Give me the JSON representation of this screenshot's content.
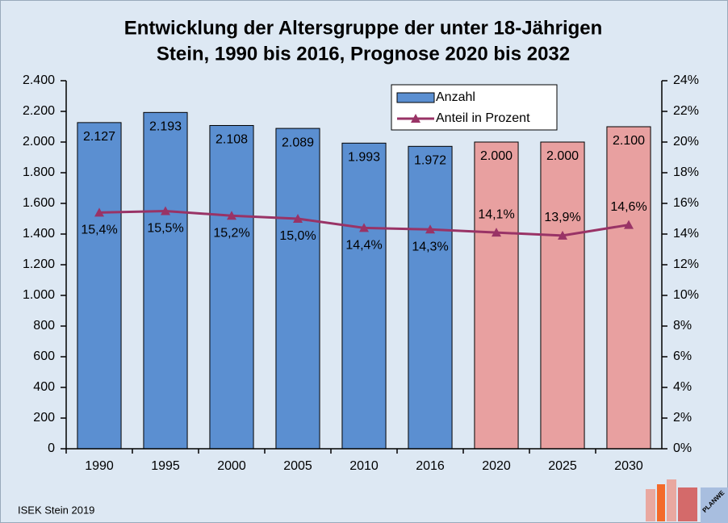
{
  "chart_data": {
    "type": "bar",
    "title": "Entwicklung der Altersgruppe der unter 18-Jährigen",
    "subtitle": "Stein, 1990 bis 2016, Prognose 2020 bis 2032",
    "categories": [
      "1990",
      "1995",
      "2000",
      "2005",
      "2010",
      "2016",
      "2020",
      "2025",
      "2030"
    ],
    "series": [
      {
        "name": "Anzahl",
        "color": "#5b8fd1",
        "colors": [
          "#5b8fd1",
          "#5b8fd1",
          "#5b8fd1",
          "#5b8fd1",
          "#5b8fd1",
          "#5b8fd1",
          "#e8a0a0",
          "#e8a0a0",
          "#e8a0a0"
        ],
        "values": [
          2127,
          2193,
          2108,
          2089,
          1993,
          1972,
          2000,
          2000,
          2100
        ],
        "value_labels": [
          "2.127",
          "2.193",
          "2.108",
          "2.089",
          "1.993",
          "1.972",
          "2.000",
          "2.000",
          "2.100"
        ]
      },
      {
        "name": "Anteil in Prozent",
        "color": "#993366",
        "type": "line",
        "axis": "y2",
        "values": [
          15.4,
          15.5,
          15.2,
          15.0,
          14.4,
          14.3,
          14.1,
          13.9,
          14.6
        ],
        "value_labels": [
          "15,4%",
          "15,5%",
          "15,2%",
          "15,0%",
          "14,4%",
          "14,3%",
          "14,1%",
          "13,9%",
          "14,6%"
        ]
      }
    ],
    "ylim": [
      0,
      2400
    ],
    "yticks": [
      0,
      200,
      400,
      600,
      800,
      {
        "value": 1000,
        "label": "1.000"
      },
      {
        "value": 1200,
        "label": "1.200"
      },
      {
        "value": 1400,
        "label": "1.400"
      },
      {
        "value": 1600,
        "label": "1.600"
      },
      {
        "value": 1800,
        "label": "1.800"
      },
      {
        "value": 2000,
        "label": "2.000"
      },
      {
        "value": 2200,
        "label": "2.200"
      },
      {
        "value": 2400,
        "label": "2.400"
      }
    ],
    "y2lim": [
      0,
      24
    ],
    "y2ticks": [
      {
        "value": 0,
        "label": "0%"
      },
      {
        "value": 2,
        "label": "2%"
      },
      {
        "value": 4,
        "label": "4%"
      },
      {
        "value": 6,
        "label": "6%"
      },
      {
        "value": 8,
        "label": "8%"
      },
      {
        "value": 10,
        "label": "10%"
      },
      {
        "value": 12,
        "label": "12%"
      },
      {
        "value": 14,
        "label": "14%"
      },
      {
        "value": 16,
        "label": "16%"
      },
      {
        "value": 18,
        "label": "18%"
      },
      {
        "value": 20,
        "label": "20%"
      },
      {
        "value": 22,
        "label": "22%"
      },
      {
        "value": 24,
        "label": "24%"
      }
    ],
    "legend": "top-right",
    "footer": "ISEK Stein 2019",
    "logo_text": "PLANWE"
  }
}
